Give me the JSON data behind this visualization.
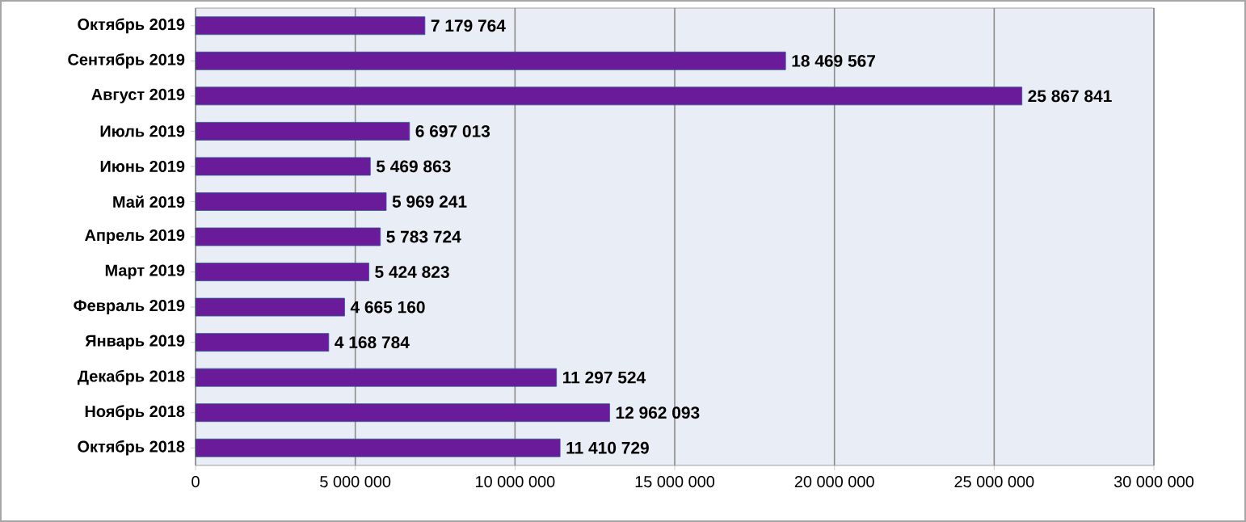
{
  "chart_data": {
    "type": "bar",
    "orientation": "horizontal",
    "categories": [
      "Октябрь 2019",
      "Сентябрь 2019",
      "Август 2019",
      "Июль 2019",
      "Июнь 2019",
      "Май 2019",
      "Апрель 2019",
      "Март 2019",
      "Февраль 2019",
      "Январь 2019",
      "Декабрь 2018",
      "Ноябрь 2018",
      "Октябрь 2018"
    ],
    "values": [
      7179764,
      18469567,
      25867841,
      6697013,
      5469863,
      5969241,
      5783724,
      5424823,
      4665160,
      4168784,
      11297524,
      12962093,
      11410729
    ],
    "value_labels": [
      "7 179 764",
      "18 469 567",
      "25 867 841",
      "6 697 013",
      "5 469 863",
      "5 969 241",
      "5 783 724",
      "5 424 823",
      "4 665 160",
      "4 168 784",
      "11 297 524",
      "12 962 093",
      "11 410 729"
    ],
    "color": "#6a1b9a",
    "xlim": [
      0,
      30000000
    ],
    "xticks": [
      0,
      {
        "value": 5000000,
        "label": "5 000 000"
      },
      {
        "value": 10000000,
        "label": "10 000 000"
      },
      {
        "value": 15000000,
        "label": "15 000 000"
      },
      {
        "value": 20000000,
        "label": "20 000 000"
      },
      {
        "value": 25000000,
        "label": "25 000 000"
      },
      {
        "value": 30000000,
        "label": "30 000 000"
      }
    ],
    "grid": "x"
  }
}
